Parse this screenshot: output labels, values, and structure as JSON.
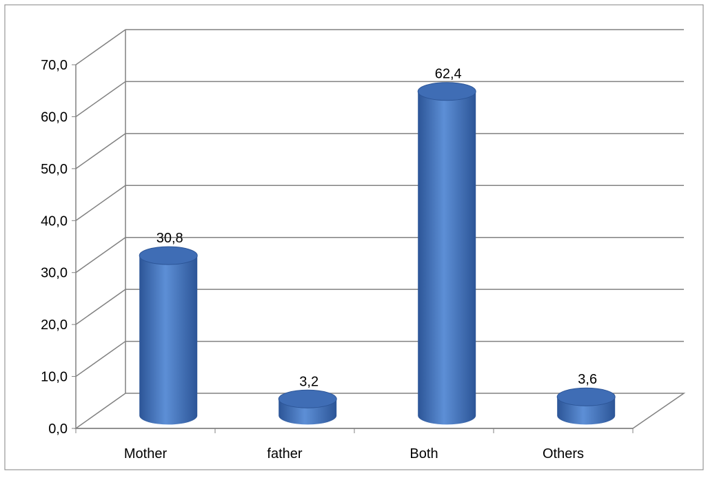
{
  "chart_data": {
    "type": "bar",
    "style": "3d-cylinder",
    "title": "",
    "xlabel": "",
    "ylabel": "",
    "categories": [
      "Mother",
      "father",
      "Both",
      "Others"
    ],
    "values": [
      30.8,
      3.2,
      62.4,
      3.6
    ],
    "value_labels": [
      "30,8",
      "3,2",
      "62,4",
      "3,6"
    ],
    "ylim": [
      0,
      70
    ],
    "y_ticks": [
      0,
      10,
      20,
      30,
      40,
      50,
      60,
      70
    ],
    "y_tick_labels": [
      "0,0",
      "10,0",
      "20,0",
      "30,0",
      "40,0",
      "50,0",
      "60,0",
      "70,0"
    ],
    "grid": true,
    "legend": "none",
    "colors": {
      "bar_light": "#5d8fd6",
      "bar_mid": "#4677c0",
      "bar_dark": "#2c5597",
      "bar_top": "#3f6db5",
      "gridline": "#808080",
      "frame": "#808080"
    }
  }
}
